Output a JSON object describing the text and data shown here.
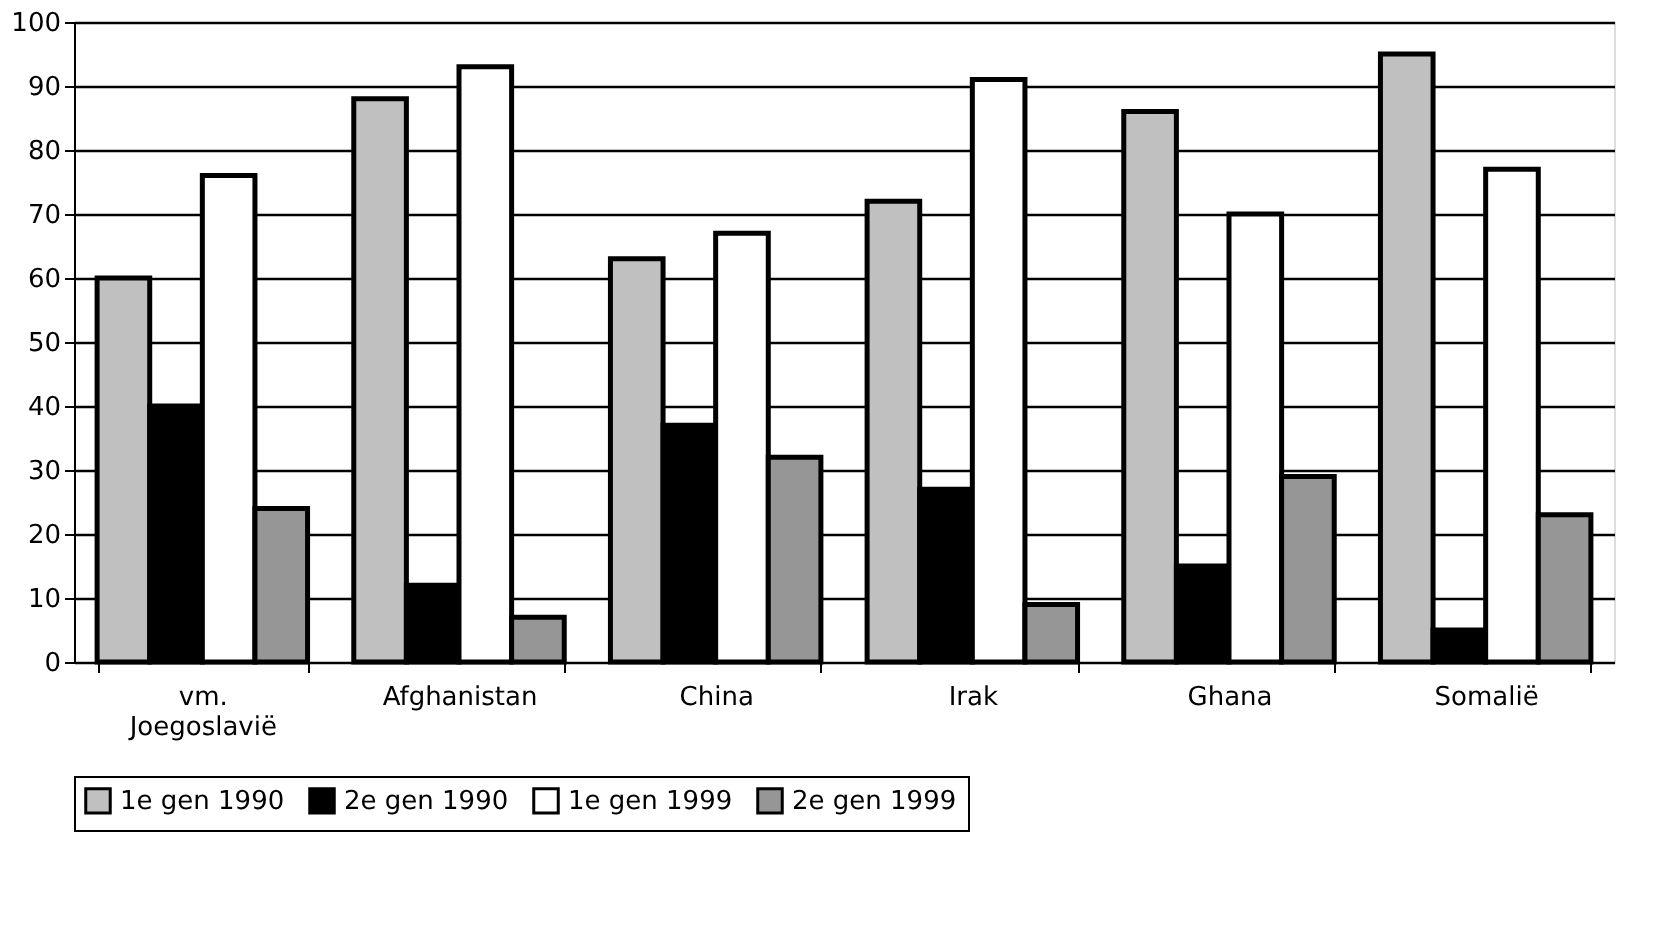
{
  "chart_data": {
    "type": "bar",
    "categories": [
      "vm. Joegoslavië",
      "Afghanistan",
      "China",
      "Irak",
      "Ghana",
      "Somalië"
    ],
    "series": [
      {
        "name": "1e gen 1990",
        "color": "#c0c0c0",
        "values": [
          60,
          88,
          63,
          72,
          86,
          95
        ]
      },
      {
        "name": "2e gen 1990",
        "color": "#000000",
        "values": [
          40,
          12,
          37,
          27,
          15,
          5
        ]
      },
      {
        "name": "1e gen 1999",
        "color": "#ffffff",
        "values": [
          76,
          93,
          67,
          91,
          70,
          77
        ]
      },
      {
        "name": "2e gen 1999",
        "color": "#969696",
        "values": [
          24,
          7,
          32,
          9,
          29,
          23
        ]
      }
    ],
    "ylim": [
      0,
      100
    ],
    "yticks": [
      0,
      10,
      20,
      30,
      40,
      50,
      60,
      70,
      80,
      90,
      100
    ],
    "grid": "y",
    "legend": "bottom"
  }
}
